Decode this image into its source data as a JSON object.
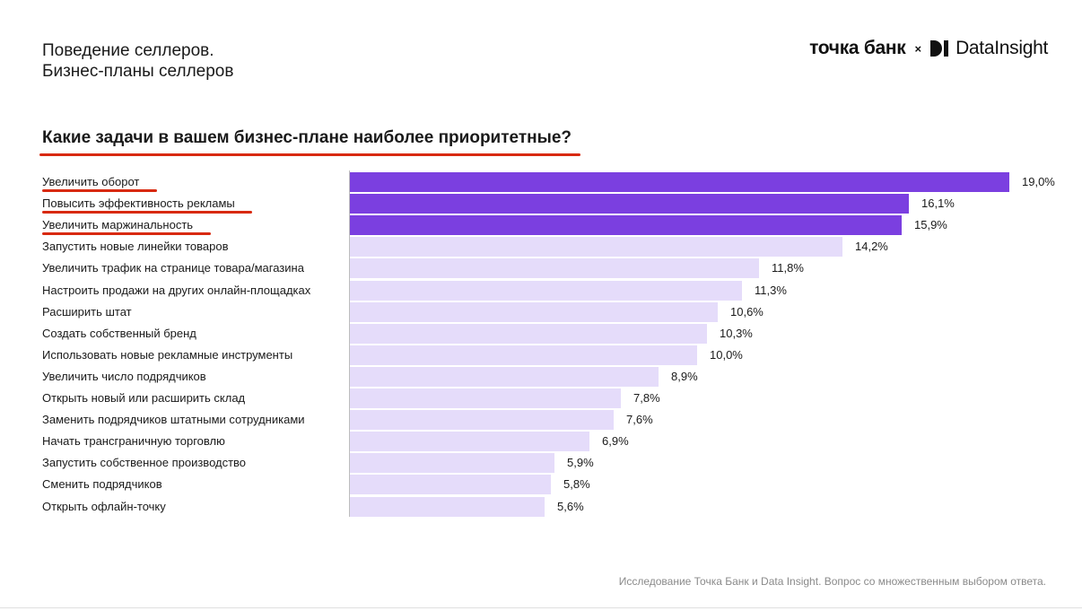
{
  "header": {
    "title_line1": "Поведение селлеров.",
    "title_line2": "Бизнес-планы селлеров"
  },
  "logo": {
    "brand1": "точка банк",
    "separator": "×",
    "brand2": "DataInsight"
  },
  "footnote": "Исследование Точка Банк и Data Insight. Вопрос со множественным выбором ответа.",
  "colors": {
    "highlight_bar": "#7b3fe0",
    "normal_bar": "#e5dcfa",
    "underline": "#d8290f"
  },
  "chart_data": {
    "type": "bar",
    "orientation": "horizontal",
    "title": "Какие задачи в вашем бизнес-плане наиболее приоритетные?",
    "categories": [
      "Увеличить оборот",
      "Повысить эффективность рекламы",
      "Увеличить маржинальность",
      "Запустить новые линейки товаров",
      "Увеличить трафик на странице товара/магазина",
      "Настроить продажи на других онлайн-площадках",
      "Расширить штат",
      "Создать собственный бренд",
      "Использовать новые рекламные инструменты",
      "Увеличить число подрядчиков",
      "Открыть новый или расширить склад",
      "Заменить подрядчиков штатными сотрудниками",
      "Начать трансграничную торговлю",
      "Запустить собственное производство",
      "Сменить подрядчиков",
      "Открыть офлайн-точку"
    ],
    "values": [
      19.0,
      16.1,
      15.9,
      14.2,
      11.8,
      11.3,
      10.6,
      10.3,
      10.0,
      8.9,
      7.8,
      7.6,
      6.9,
      5.9,
      5.8,
      5.6
    ],
    "value_labels": [
      "19,0%",
      "16,1%",
      "15,9%",
      "14,2%",
      "11,8%",
      "11,3%",
      "10,6%",
      "10,3%",
      "10,0%",
      "8,9%",
      "7,8%",
      "7,6%",
      "6,9%",
      "5,9%",
      "5,8%",
      "5,6%"
    ],
    "highlighted": [
      true,
      true,
      true,
      false,
      false,
      false,
      false,
      false,
      false,
      false,
      false,
      false,
      false,
      false,
      false,
      false
    ],
    "underlined": [
      true,
      true,
      true,
      false,
      false,
      false,
      false,
      false,
      false,
      false,
      false,
      false,
      false,
      false,
      false,
      false
    ],
    "unit": "%",
    "xlim": [
      0,
      19.0
    ],
    "grid": false,
    "legend": "none"
  }
}
